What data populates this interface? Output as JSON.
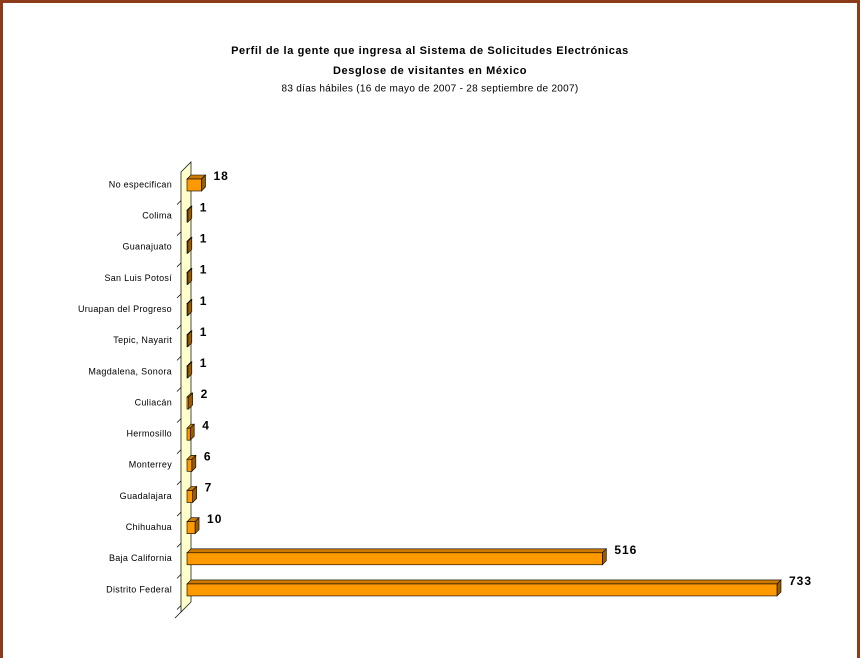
{
  "chart_data": {
    "type": "bar",
    "orientation": "horizontal",
    "title": "Perfil de la gente que ingresa al Sistema de Solicitudes Electrónicas",
    "subtitle": "Desglose de visitantes en México",
    "note": "83 días hábiles (16 de mayo de 2007 - 28 septiembre de 2007)",
    "categories": [
      "No especifican",
      "Colima",
      "Guanajuato",
      "San Luis Potosí",
      "Uruapan del Progreso",
      "Tepic, Nayarit",
      "Magdalena, Sonora",
      "Culiacán",
      "Hermosillo",
      "Monterrey",
      "Guadalajara",
      "Chihuahua",
      "Baja California",
      "Distrito Federal"
    ],
    "values": [
      18,
      1,
      1,
      1,
      1,
      1,
      1,
      2,
      4,
      6,
      7,
      10,
      516,
      733
    ],
    "color": "#ff9900"
  }
}
